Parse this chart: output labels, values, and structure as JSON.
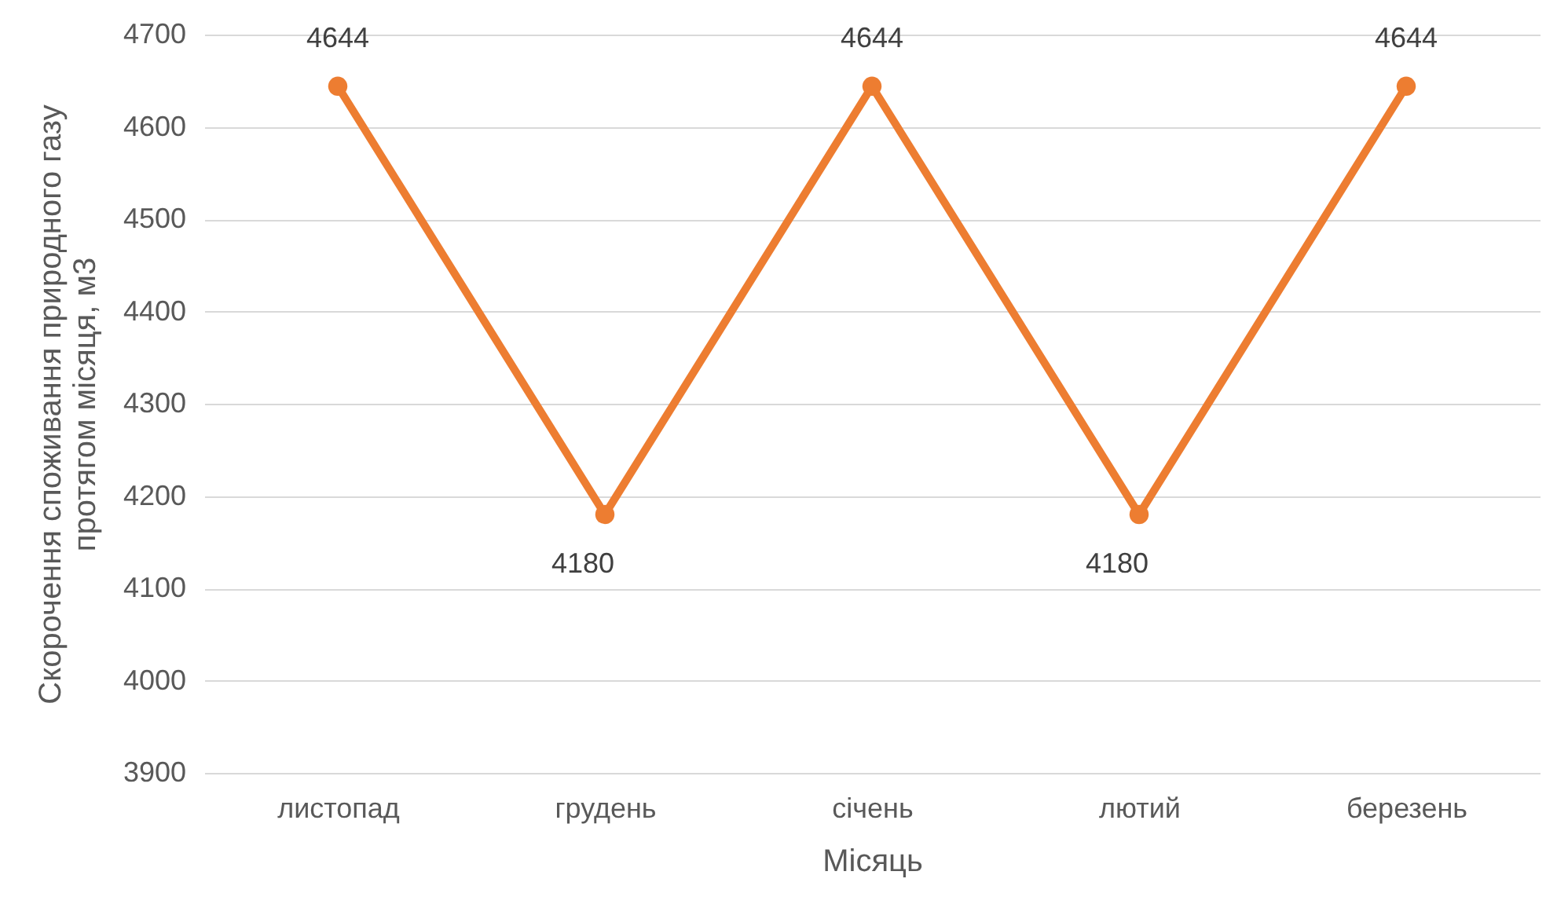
{
  "chart_data": {
    "type": "line",
    "categories": [
      "листопад",
      "грудень",
      "січень",
      "лютий",
      "березень"
    ],
    "series": [
      {
        "color": "#ed7d31",
        "values": [
          4644,
          4180,
          4644,
          4180,
          4644
        ]
      }
    ],
    "xlabel": "Місяць",
    "ylabel": "Скорочення споживання природного газу протягом місяця, м3",
    "ylim": [
      3900,
      4700
    ],
    "yticks": [
      3900,
      4000,
      4100,
      4200,
      4300,
      4400,
      4500,
      4600,
      4700
    ],
    "grid": "y",
    "marker": "circle",
    "line_style": "solid",
    "data_labels": true
  }
}
